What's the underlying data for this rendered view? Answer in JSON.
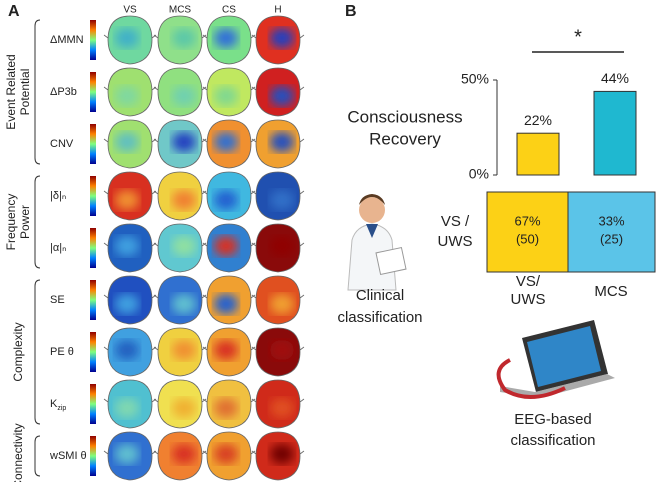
{
  "panel_a": {
    "label": "A",
    "columns": [
      "VS",
      "MCS",
      "CS",
      "H"
    ],
    "groups": [
      {
        "label": [
          "Event Related",
          "Potential"
        ],
        "rows": [
          "ΔMMN",
          "ΔP3b",
          "CNV"
        ]
      },
      {
        "label": [
          "Frequency",
          "Power"
        ],
        "rows": [
          "|δ|ₙ",
          "|α|ₙ"
        ]
      },
      {
        "label": [
          "Complexity"
        ],
        "rows": [
          "SE",
          "PE θ",
          {
            "base": "K",
            "sub": "zip"
          }
        ]
      },
      {
        "label": [
          "Connectivity"
        ],
        "rows": [
          "wSMI θ"
        ]
      }
    ]
  },
  "panel_b": {
    "label": "B",
    "row_label": [
      "VS /",
      "UWS"
    ],
    "cells": [
      {
        "percent": "67%",
        "count": "(50)"
      },
      {
        "percent": "33%",
        "count": "(25)"
      }
    ],
    "clinical": [
      "Clinical",
      "classification"
    ],
    "eeg": [
      "EEG-based",
      "classification"
    ]
  },
  "chart_data": {
    "type": "bar",
    "title": [
      "Consciousness",
      "Recovery"
    ],
    "categories": [
      [
        "VS/",
        "UWS"
      ],
      [
        "MCS"
      ]
    ],
    "values": [
      22,
      44
    ],
    "value_labels": [
      "22%",
      "44%"
    ],
    "colors": [
      "#fcd116",
      "#1fb8d0"
    ],
    "ylim": [
      0,
      50
    ],
    "yticks": [
      {
        "value": 0,
        "label": "0%"
      },
      {
        "value": 50,
        "label": "50%"
      }
    ],
    "significance": "*"
  }
}
